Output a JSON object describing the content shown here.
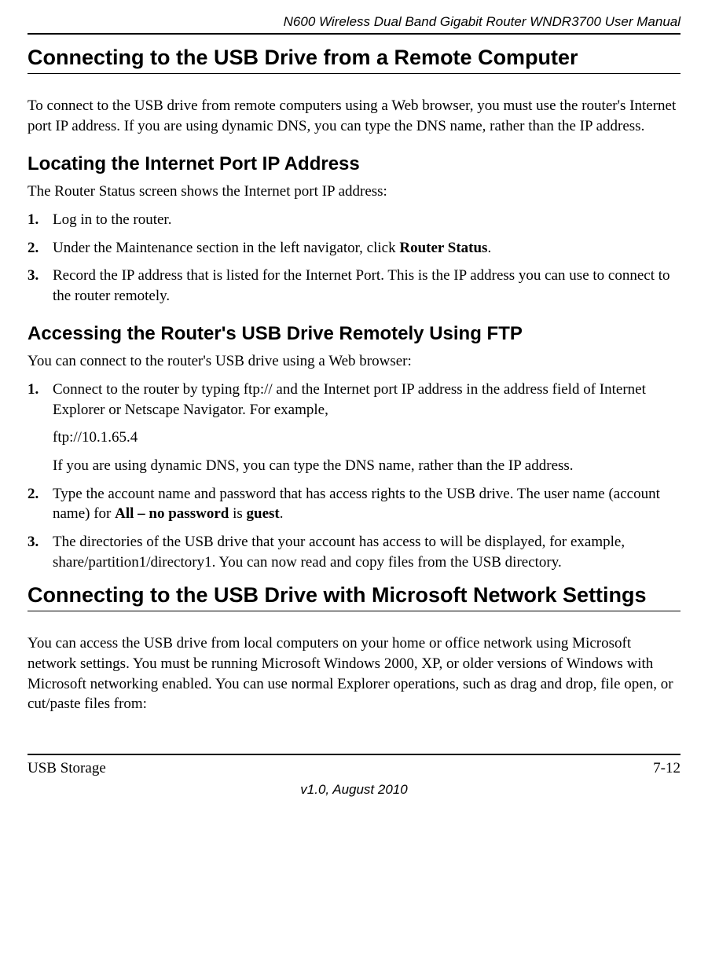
{
  "header": {
    "doc_title": "N600 Wireless Dual Band Gigabit Router WNDR3700 User Manual"
  },
  "s1": {
    "h1": "Connecting to the USB Drive from a Remote Computer",
    "p1": "To connect to the USB drive from remote computers using a Web browser, you must use the router's Internet port IP address. If you are using dynamic DNS, you can type the DNS name, rather than the IP address."
  },
  "s2": {
    "h2": "Locating the Internet Port IP Address",
    "lead": "The Router Status screen shows the Internet port IP address:",
    "step1": "Log in to the router.",
    "step2_a": "Under the Maintenance section in the left navigator, click ",
    "step2_b": "Router Status",
    "step2_c": ".",
    "step3": "Record the IP address that is listed for the Internet Port. This is the IP address you can use to connect to the router remotely."
  },
  "s3": {
    "h2": "Accessing the Router's USB Drive Remotely Using FTP",
    "lead": "You can connect to the router's USB drive using a Web browser:",
    "step1_a": "Connect to the router by typing ftp:// and the Internet port IP address in the address field of Internet Explorer or Netscape Navigator. For example,",
    "step1_b": "ftp://10.1.65.4",
    "step1_c": "If you are using dynamic DNS, you can type the DNS name, rather than the IP address.",
    "step2_a": "Type the account name and password that has access rights to the USB drive. The user name (account name) for ",
    "step2_b": "All – no password",
    "step2_c": " is ",
    "step2_d": "guest",
    "step2_e": ".",
    "step3": "The directories of the USB drive that your account has access to will be displayed, for example, share/partition1/directory1. You can now read and copy files from the USB directory."
  },
  "s4": {
    "h1": "Connecting to the USB Drive with Microsoft Network Settings",
    "p1": "You can access the USB drive from local computers on your home or office network using Microsoft network settings. You must be running Microsoft Windows 2000, XP, or older versions of Windows with Microsoft networking enabled. You can use normal Explorer operations, such as drag and drop, file open, or cut/paste files from:"
  },
  "footer": {
    "left": "USB Storage",
    "right": "7-12",
    "center": "v1.0, August 2010"
  }
}
